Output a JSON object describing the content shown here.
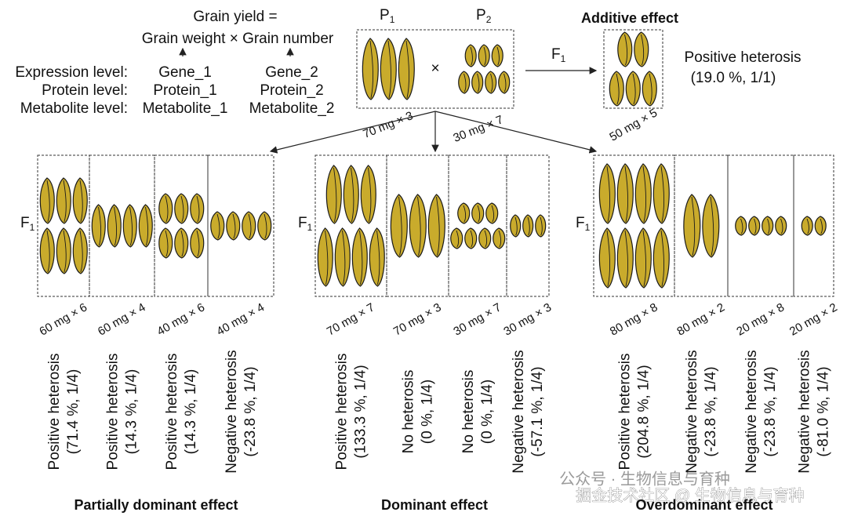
{
  "header": {
    "formula_line1": "Grain yield =",
    "formula_line2": "Grain weight × Grain number",
    "level_labels": [
      "Expression level:",
      "Protein level:",
      "Metabolite level:"
    ],
    "column1": [
      "Gene_1",
      "Protein_1",
      "Metabolite_1"
    ],
    "column2": [
      "Gene_2",
      "Protein_2",
      "Metabolite_2"
    ]
  },
  "parents": {
    "p1_label": "P",
    "p1_sub": "1",
    "p2_label": "P",
    "p2_sub": "2",
    "cross": "×",
    "p1_weight": "70 mg × 3",
    "p2_weight": "30 mg × 7",
    "f1_label": "F",
    "f1_sub": "1"
  },
  "additive": {
    "title": "Additive effect",
    "result_line1": "Positive heterosis",
    "result_line2": "(19.0 %, 1/1)",
    "weight": "50 mg × 5",
    "color": "#e5534b"
  },
  "groups": [
    {
      "title": "Partially dominant effect",
      "f1_label": "F",
      "f1_sub": "1",
      "boxes": [
        {
          "weight": "60 mg × 6",
          "result_line1": "Positive heterosis",
          "result_line2": "(71.4 %, 1/4)",
          "color": "#e5534b"
        },
        {
          "weight": "60 mg × 4",
          "result_line1": "Positive heterosis",
          "result_line2": "(14.3 %, 1/4)",
          "color": "#e5534b"
        },
        {
          "weight": "40 mg × 6",
          "result_line1": "Positive heterosis",
          "result_line2": "(14.3 %, 1/4)",
          "color": "#e5534b"
        },
        {
          "weight": "40 mg × 4",
          "result_line1": "Negative heterosis",
          "result_line2": "(-23.8 %, 1/4)",
          "color": "#35bfe0"
        }
      ]
    },
    {
      "title": "Dominant effect",
      "f1_label": "F",
      "f1_sub": "1",
      "boxes": [
        {
          "weight": "70 mg × 7",
          "result_line1": "Positive heterosis",
          "result_line2": "(133.3 %, 1/4)",
          "color": "#e5534b"
        },
        {
          "weight": "70 mg × 3",
          "result_line1": "No heterosis",
          "result_line2": "(0 %, 1/4)",
          "color": "#111111"
        },
        {
          "weight": "30 mg × 7",
          "result_line1": "No heterosis",
          "result_line2": "(0 %, 1/4)",
          "color": "#111111"
        },
        {
          "weight": "30 mg × 3",
          "result_line1": "Negative heterosis",
          "result_line2": "(-57.1 %, 1/4)",
          "color": "#35bfe0"
        }
      ]
    },
    {
      "title": "Overdominant effect",
      "f1_label": "F",
      "f1_sub": "1",
      "boxes": [
        {
          "weight": "80 mg × 8",
          "result_line1": "Positive heterosis",
          "result_line2": "(204.8 %, 1/4)",
          "color": "#e5534b"
        },
        {
          "weight": "80 mg × 2",
          "result_line1": "Negative heterosis",
          "result_line2": "(-23.8 %, 1/4)",
          "color": "#35bfe0"
        },
        {
          "weight": "20 mg × 8",
          "result_line1": "Negative heterosis",
          "result_line2": "(-23.8 %, 1/4)",
          "color": "#35bfe0"
        },
        {
          "weight": "20 mg × 2",
          "result_line1": "Negative heterosis",
          "result_line2": "(-81.0 %, 1/4)",
          "color": "#35bfe0"
        }
      ]
    }
  ],
  "watermark": {
    "line1": "公众号 · 生物信息与育种",
    "line2": "掘金技术社区 @ 生物信息与育种"
  }
}
